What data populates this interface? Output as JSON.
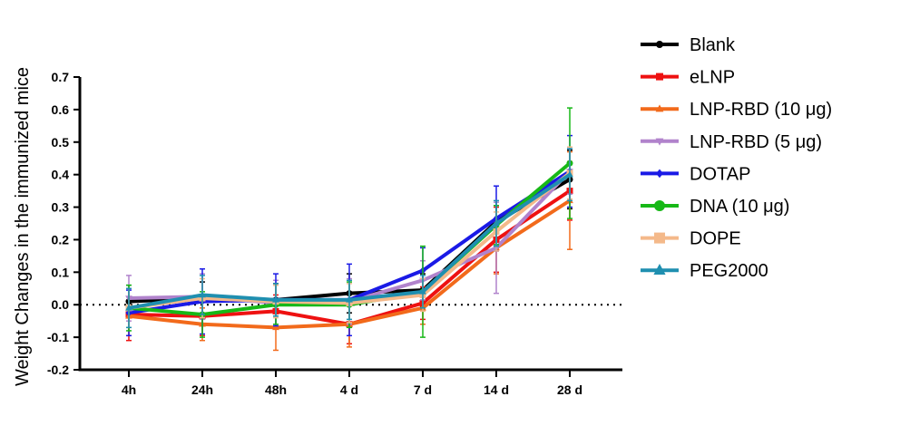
{
  "chart_data": {
    "type": "line",
    "title": "",
    "xlabel": "",
    "ylabel": "Weight Changes in the immunized mice",
    "ylim": [
      -0.2,
      0.7
    ],
    "yticks": [
      "-0.2",
      "-0.1",
      "0.0",
      "0.1",
      "0.2",
      "0.3",
      "0.4",
      "0.5",
      "0.6",
      "0.7"
    ],
    "categories": [
      "4h",
      "24h",
      "48h",
      "4 d",
      "7 d",
      "14 d",
      "28 d"
    ],
    "reference_line": 0,
    "legend_position": "right",
    "series": [
      {
        "name": "Blank",
        "color": "#000000",
        "marker": "circle",
        "values": [
          0.01,
          0.02,
          0.015,
          0.035,
          0.045,
          0.255,
          0.385
        ],
        "errors": [
          0.05,
          0.05,
          0.05,
          0.06,
          0.05,
          0.05,
          0.09
        ]
      },
      {
        "name": "eLNP",
        "color": "#ee1111",
        "marker": "square",
        "values": [
          -0.03,
          -0.035,
          -0.02,
          -0.06,
          0.005,
          0.2,
          0.35
        ],
        "errors": [
          0.08,
          0.06,
          0.05,
          0.06,
          0.05,
          0.1,
          0.09
        ]
      },
      {
        "name": "LNP-RBD (10 μg)",
        "color": "#f26a1b",
        "marker": "triangle",
        "values": [
          -0.035,
          -0.06,
          -0.07,
          -0.06,
          -0.01,
          0.175,
          0.32
        ],
        "errors": [
          0.06,
          0.05,
          0.07,
          0.07,
          0.05,
          0.08,
          0.15
        ]
      },
      {
        "name": "LNP-RBD (5 μg)",
        "color": "#b183cc",
        "marker": "triangle-down",
        "values": [
          0.02,
          0.025,
          0.005,
          0.01,
          0.075,
          0.175,
          0.41
        ],
        "errors": [
          0.07,
          0.07,
          0.07,
          0.07,
          0.06,
          0.14,
          0.07
        ]
      },
      {
        "name": "DOTAP",
        "color": "#1a1ae6",
        "marker": "diamond",
        "values": [
          -0.025,
          0.01,
          0.015,
          0.015,
          0.105,
          0.265,
          0.41
        ],
        "errors": [
          0.07,
          0.1,
          0.08,
          0.11,
          0.07,
          0.1,
          0.11
        ]
      },
      {
        "name": "DNA (10 μg)",
        "color": "#17b817",
        "marker": "circle",
        "values": [
          -0.01,
          -0.03,
          0.0,
          0.0,
          0.04,
          0.245,
          0.435
        ],
        "errors": [
          0.07,
          0.07,
          0.06,
          0.07,
          0.14,
          0.06,
          0.17
        ]
      },
      {
        "name": "DOPE",
        "color": "#f4b98a",
        "marker": "square",
        "values": [
          -0.01,
          0.02,
          0.01,
          0.005,
          0.03,
          0.225,
          0.405
        ],
        "errors": [
          0.06,
          0.06,
          0.05,
          0.06,
          0.05,
          0.06,
          0.08
        ]
      },
      {
        "name": "PEG2000",
        "color": "#1f8fb0",
        "marker": "triangle",
        "values": [
          -0.01,
          0.03,
          0.015,
          0.015,
          0.04,
          0.25,
          0.4
        ],
        "errors": [
          0.06,
          0.06,
          0.05,
          0.06,
          0.05,
          0.07,
          0.08
        ]
      }
    ]
  }
}
